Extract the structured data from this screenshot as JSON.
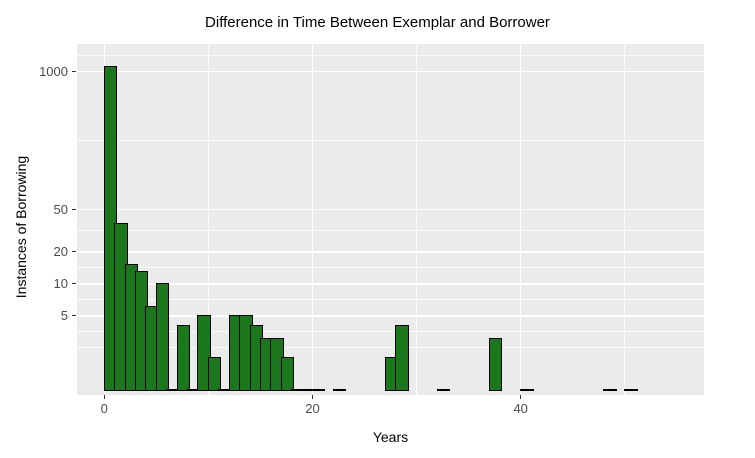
{
  "title": "Difference in Time Between Exemplar and Borrower",
  "chart_data": {
    "type": "bar",
    "subtype": "histogram",
    "title": "Difference in Time Between Exemplar and Borrower",
    "xlabel": "Years",
    "ylabel": "Instances of Borrowing",
    "y_scale": "log10",
    "y_baseline": 1,
    "binwidth_years": 1,
    "bins": [
      {
        "x": 0,
        "count": 1100
      },
      {
        "x": 1,
        "count": 37
      },
      {
        "x": 2,
        "count": 15
      },
      {
        "x": 3,
        "count": 13
      },
      {
        "x": 4,
        "count": 6
      },
      {
        "x": 5,
        "count": 10
      },
      {
        "x": 6,
        "count": 1
      },
      {
        "x": 7,
        "count": 4
      },
      {
        "x": 8,
        "count": 1
      },
      {
        "x": 9,
        "count": 5
      },
      {
        "x": 10,
        "count": 2
      },
      {
        "x": 11,
        "count": 1
      },
      {
        "x": 12,
        "count": 5
      },
      {
        "x": 13,
        "count": 5
      },
      {
        "x": 14,
        "count": 4
      },
      {
        "x": 15,
        "count": 3
      },
      {
        "x": 16,
        "count": 3
      },
      {
        "x": 17,
        "count": 2
      },
      {
        "x": 18,
        "count": 1
      },
      {
        "x": 19,
        "count": 1
      },
      {
        "x": 20,
        "count": 1
      },
      {
        "x": 22,
        "count": 1
      },
      {
        "x": 27,
        "count": 2
      },
      {
        "x": 28,
        "count": 4
      },
      {
        "x": 32,
        "count": 1
      },
      {
        "x": 37,
        "count": 3
      },
      {
        "x": 40,
        "count": 1
      },
      {
        "x": 48,
        "count": 1
      },
      {
        "x": 50,
        "count": 1
      }
    ],
    "x_ticks": [
      {
        "value": 0,
        "label": "0"
      },
      {
        "value": 20,
        "label": "20"
      },
      {
        "value": 40,
        "label": "40"
      }
    ],
    "y_ticks": [
      {
        "value": 1000,
        "label": "1000"
      },
      {
        "value": 50,
        "label": "50"
      },
      {
        "value": 20,
        "label": "20"
      },
      {
        "value": 10,
        "label": "10"
      },
      {
        "value": 5,
        "label": "5"
      }
    ],
    "x_minor_gridlines": [
      10,
      30,
      50
    ],
    "y_minor_gridlines": [
      1414,
      223.6,
      31.6,
      14.14,
      7.07,
      3.54,
      2.5
    ],
    "xlim": [
      -2.6,
      57.6
    ],
    "grid": "on",
    "legend": "none",
    "colors": {
      "bar_fill": "#1b771b",
      "bar_stroke": "#000000",
      "panel_background": "#ebebeb",
      "gridline": "#ffffff",
      "tick_label": "#4d4d4d",
      "text": "#000000",
      "figure_background": "#ffffff"
    }
  }
}
